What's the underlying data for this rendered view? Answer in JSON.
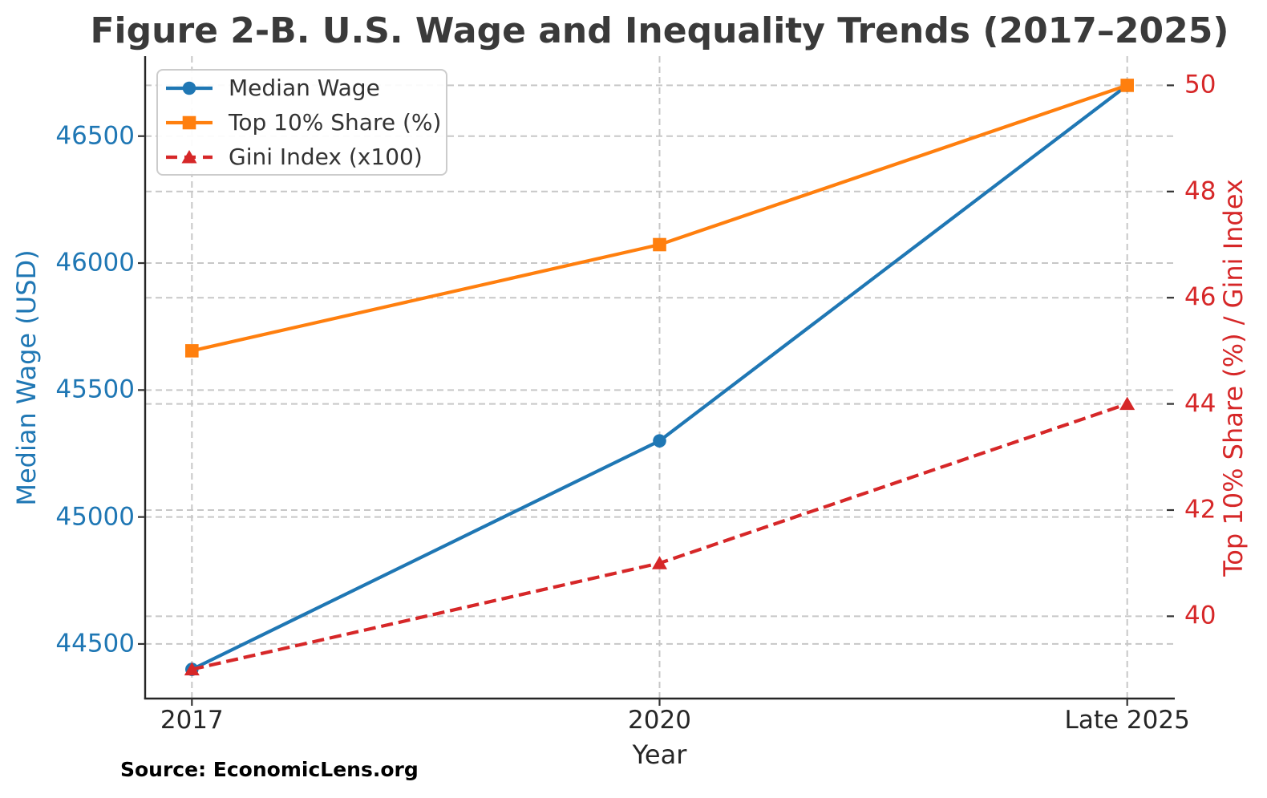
{
  "title": "Figure 2-B. U.S. Wage and Inequality Trends (2017–2025)",
  "source_note": "Source: EconomicLens.org",
  "chart_data": {
    "type": "line",
    "x_categories": [
      "2017",
      "2020",
      "Late 2025"
    ],
    "xlabel": "Year",
    "grid": true,
    "legend_position": "upper left",
    "left_axis": {
      "label": "Median Wage (USD)",
      "color": "#1f77b4",
      "ticks": [
        44500,
        45000,
        45500,
        46000,
        46500
      ],
      "ylim": [
        44285,
        46815
      ]
    },
    "right_axis": {
      "label": "Top 10% Share (%) / Gini Index",
      "color": "#d62728",
      "ticks": [
        40,
        42,
        44,
        46,
        48,
        50
      ],
      "ylim": [
        38.45,
        50.55
      ]
    },
    "series": [
      {
        "name": "Median Wage",
        "axis": "left",
        "color": "#1f77b4",
        "marker": "circle",
        "line": "solid",
        "values": [
          44400,
          45300,
          46700
        ]
      },
      {
        "name": "Top 10% Share (%)",
        "axis": "right",
        "color": "#ff7f0e",
        "marker": "square",
        "line": "solid",
        "values": [
          45,
          47,
          50
        ]
      },
      {
        "name": "Gini Index (x100)",
        "axis": "right",
        "color": "#d62728",
        "marker": "triangle",
        "line": "dashed",
        "values": [
          39,
          41,
          44
        ]
      }
    ]
  },
  "style": {
    "grid_color": "#c7c7c7",
    "spine_color": "#262626",
    "tick_color": "#333333",
    "title_color": "#3a3a3a",
    "xtick_color": "#262626"
  }
}
